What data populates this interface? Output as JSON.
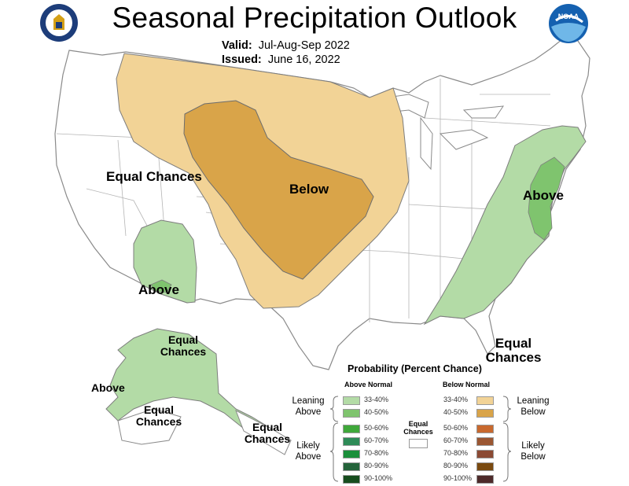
{
  "header": {
    "title": "Seasonal Precipitation Outlook",
    "valid_label": "Valid:",
    "valid_value": "Jul-Aug-Sep 2022",
    "issued_label": "Issued:",
    "issued_value": "June 16, 2022"
  },
  "logos": {
    "left": "department-of-commerce-seal-icon",
    "right": "noaa-logo-icon"
  },
  "map_labels": {
    "west_equal": "Equal Chances",
    "center_below": "Below",
    "southwest_above": "Above",
    "east_above": "Above",
    "southeast_equal": "Equal Chances",
    "alaska_north_equal": "Equal Chances",
    "alaska_above": "Above",
    "alaska_south_equal": "Equal Chances",
    "alaska_southeast_equal": "Equal Chances"
  },
  "colors": {
    "below_33_40": "#f2d396",
    "below_40_50": "#d9a449",
    "above_33_40": "#b3dba6",
    "above_40_50": "#7fc46e",
    "border": "#8a8a8a",
    "background": "#ffffff"
  },
  "legend": {
    "title": "Probability (Percent Chance)",
    "above_header": "Above Normal",
    "below_header": "Below Normal",
    "equal_chances": "Equal Chances",
    "leaning_above": "Leaning Above",
    "likely_above": "Likely Above",
    "leaning_below": "Leaning Below",
    "likely_below": "Likely Below",
    "above_bins": [
      {
        "label": "33-40%",
        "color": "#b3dba6"
      },
      {
        "label": "40-50%",
        "color": "#7fc46e"
      },
      {
        "label": "50-60%",
        "color": "#3fa83a"
      },
      {
        "label": "60-70%",
        "color": "#2e8b57"
      },
      {
        "label": "70-80%",
        "color": "#1a8f3a"
      },
      {
        "label": "80-90%",
        "color": "#24633a"
      },
      {
        "label": "90-100%",
        "color": "#174d1e"
      }
    ],
    "below_bins": [
      {
        "label": "33-40%",
        "color": "#f2d396"
      },
      {
        "label": "40-50%",
        "color": "#d9a449"
      },
      {
        "label": "50-60%",
        "color": "#c8692e"
      },
      {
        "label": "60-70%",
        "color": "#9a5632"
      },
      {
        "label": "70-80%",
        "color": "#8b4a34"
      },
      {
        "label": "80-90%",
        "color": "#7a4a10"
      },
      {
        "label": "90-100%",
        "color": "#4d2a2a"
      }
    ]
  }
}
